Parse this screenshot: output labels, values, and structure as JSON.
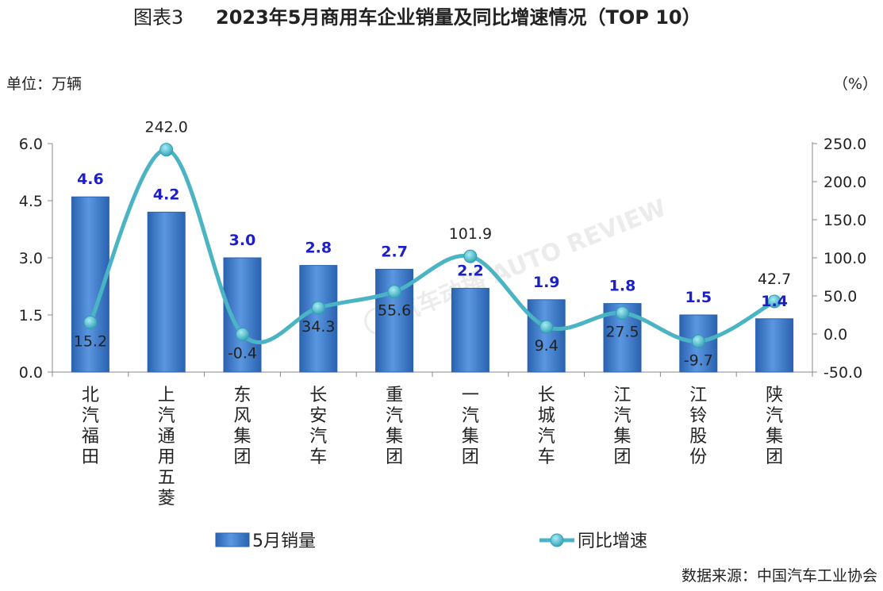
{
  "header": {
    "figure_label": "图表3",
    "title": "2023年5月商用车企业销量及同比增速情况（TOP 10）",
    "left_unit": "单位：万辆",
    "right_unit": "（%）"
  },
  "source": "数据来源：中国汽车工业协会",
  "watermark": "汽车动播 AUTO REVIEW",
  "colors": {
    "bar": "#4a86d4",
    "bar_dark": "#2a62b0",
    "line": "#4bb4c4",
    "marker": "#41b5c8",
    "bar_label": "#1d20c6"
  },
  "chart_data": {
    "type": "bar+line",
    "categories": [
      "北汽福田",
      "上汽通用五菱",
      "东风集团",
      "长安汽车",
      "重汽集团",
      "一汽集团",
      "长城汽车",
      "江汽集团",
      "江铃股份",
      "陕汽集团"
    ],
    "series": [
      {
        "name": "5月销量",
        "type": "bar",
        "axis": "left",
        "values": [
          4.6,
          4.2,
          3.0,
          2.8,
          2.7,
          2.2,
          1.9,
          1.8,
          1.5,
          1.4
        ],
        "labels": [
          "4.6",
          "4.2",
          "3.0",
          "2.8",
          "2.7",
          "2.2",
          "1.9",
          "1.8",
          "1.5",
          "1.4"
        ]
      },
      {
        "name": "同比增速",
        "type": "line",
        "axis": "right",
        "smooth": true,
        "values": [
          15.2,
          242.0,
          -0.4,
          34.3,
          55.6,
          101.9,
          9.4,
          27.5,
          -9.7,
          42.7
        ],
        "labels": [
          "15.2",
          "242.0",
          "-0.4",
          "34.3",
          "55.6",
          "101.9",
          "9.4",
          "27.5",
          "-9.7",
          "42.7"
        ]
      }
    ],
    "left_axis": {
      "min": 0,
      "max": 6,
      "ticks": [
        "0.0",
        "1.5",
        "3.0",
        "4.5",
        "6.0"
      ]
    },
    "right_axis": {
      "min": -50,
      "max": 250,
      "ticks": [
        "-50.0",
        "0.0",
        "50.0",
        "100.0",
        "150.0",
        "200.0",
        "250.0"
      ]
    },
    "grid": false,
    "legend_position": "bottom"
  }
}
